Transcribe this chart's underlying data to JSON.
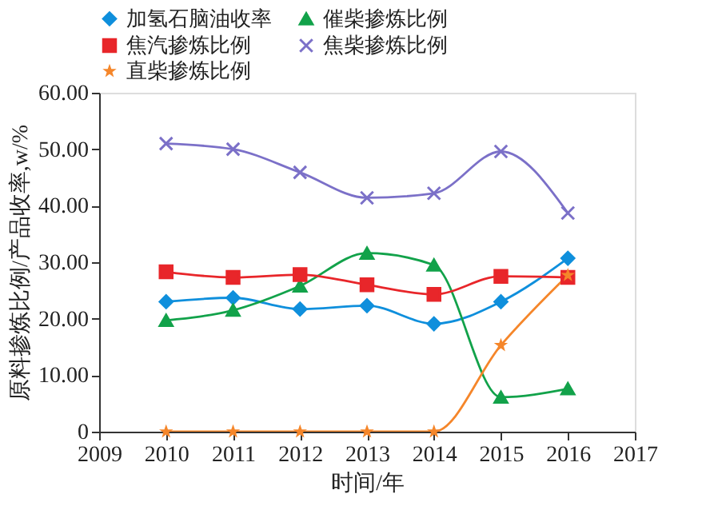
{
  "chart_data": {
    "type": "line",
    "xlabel": "时间/年",
    "ylabel": "原料掺炼比例/产品收率,w/%",
    "x": [
      2010,
      2011,
      2012,
      2013,
      2014,
      2015,
      2016
    ],
    "series": [
      {
        "name": "加氢石脑油收率",
        "color": "#0f8fdc",
        "marker": "diamond",
        "values": [
          23.0,
          23.7,
          21.7,
          22.3,
          19.1,
          23.0,
          30.7
        ]
      },
      {
        "name": "催柴掺炼比例",
        "color": "#12a24a",
        "marker": "triangle",
        "values": [
          19.7,
          21.5,
          25.8,
          31.6,
          29.5,
          6.1,
          7.6
        ]
      },
      {
        "name": "焦汽掺炼比例",
        "color": "#e8262a",
        "marker": "square",
        "values": [
          28.3,
          27.3,
          27.8,
          26.0,
          24.3,
          27.5,
          27.3
        ]
      },
      {
        "name": "焦柴掺炼比例",
        "color": "#7b70c8",
        "marker": "cross",
        "values": [
          51.0,
          50.0,
          45.9,
          41.4,
          42.2,
          49.6,
          38.7
        ]
      },
      {
        "name": "直柴掺炼比例",
        "color": "#f5862a",
        "marker": "star",
        "values": [
          0,
          0,
          0,
          0,
          0,
          15.3,
          27.7
        ]
      }
    ],
    "xlim": [
      2009,
      2017
    ],
    "xticks": [
      2009,
      2010,
      2011,
      2012,
      2013,
      2014,
      2015,
      2016,
      2017
    ],
    "ylim": [
      0,
      60
    ],
    "yticks": [
      0,
      {
        "value": 10,
        "label": "10.00"
      },
      {
        "value": 20,
        "label": "20.00"
      },
      {
        "value": 30,
        "label": "30.00"
      },
      {
        "value": 40,
        "label": "40.00"
      },
      {
        "value": 50,
        "label": "50.00"
      },
      {
        "value": 60,
        "label": "60.00"
      }
    ],
    "legend": "top",
    "grid": false,
    "line_style": "solid"
  }
}
